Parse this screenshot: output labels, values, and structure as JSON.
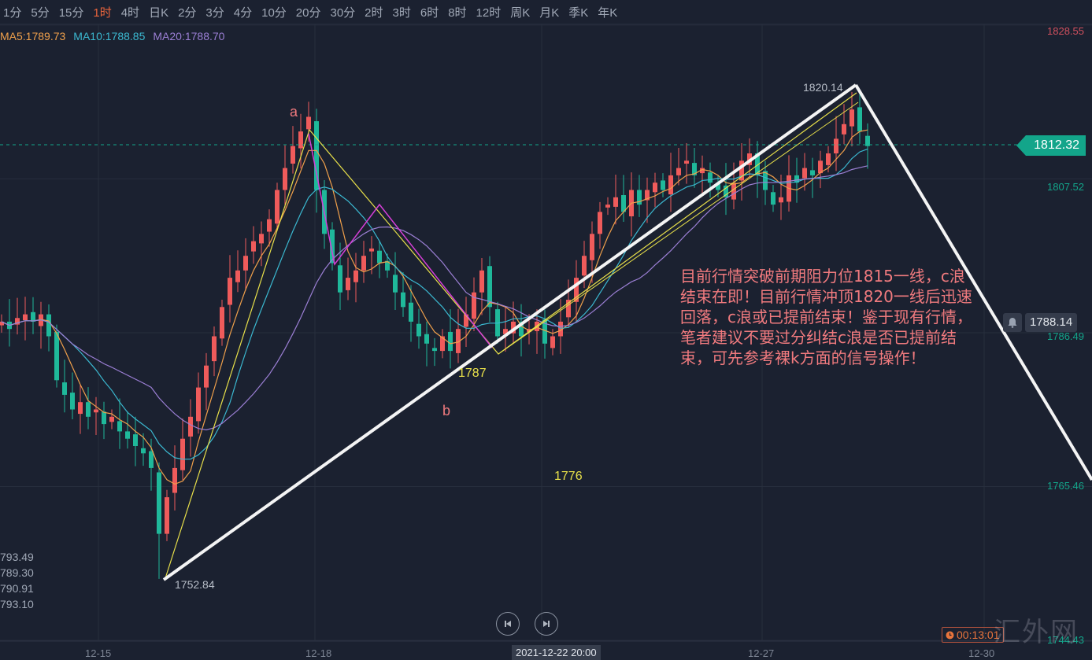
{
  "toolbar": {
    "intervals": [
      "1分",
      "5分",
      "15分",
      "1时",
      "4时",
      "日K",
      "2分",
      "3分",
      "4分",
      "10分",
      "20分",
      "30分",
      "2时",
      "3时",
      "6时",
      "8时",
      "12时",
      "周K",
      "月K",
      "季K",
      "年K"
    ],
    "active": "1时"
  },
  "legend": {
    "ma5": "MA5:1789.73",
    "ma10": "MA10:1788.85",
    "ma20": "MA20:1788.70"
  },
  "colors": {
    "background": "#1b2130",
    "up": "#ef5b5b",
    "down": "#1fb89a",
    "ma5": "#f0a04b",
    "ma10": "#3bb8d0",
    "ma20": "#9b7fd4",
    "annotation_text": "#f07a7e",
    "wave_yellow": "#e8e04a",
    "wave_magenta": "#d43fd6"
  },
  "side_values": [
    "793.49",
    "789.30",
    "790.91",
    "793.10"
  ],
  "current_price": "1812.32",
  "alert": {
    "icon": "bell-icon",
    "price": "1788.14"
  },
  "timer": "00:13:01",
  "watermark": "汇外网",
  "crosshair_time": "2021-12-22 20:00",
  "annotations": {
    "high_label": "1820.14",
    "low_label": "1752.84",
    "wave_a": "a",
    "wave_b": "b",
    "level_1787": "1787",
    "level_1776": "1776",
    "note": "目前行情突破前期阻力位1815一线，c浪结束在即！目前行情冲顶1820一线后迅速回落，c浪或已提前结束！鉴于现有行情，笔者建议不要过分纠结c浪是否已提前结束，可先参考裸k方面的信号操作！"
  },
  "chart_data": {
    "type": "candlestick",
    "interval": "1时",
    "y_ticks": [
      "1828.55",
      "1807.52",
      "1786.49",
      "1765.46",
      "1744.43"
    ],
    "ylim": [
      1744.43,
      1828.55
    ],
    "x_ticks": [
      "12-15",
      "12-18",
      "12-27",
      "12-30"
    ],
    "grid": true,
    "closes": [
      1788,
      1787,
      1788.5,
      1789,
      1788,
      1789,
      1786,
      1780,
      1778,
      1776,
      1777,
      1775,
      1776,
      1774,
      1775,
      1773,
      1772,
      1771,
      1770,
      1768,
      1759,
      1764,
      1768,
      1772,
      1775,
      1779,
      1782,
      1786,
      1790,
      1794,
      1795,
      1797,
      1799,
      1800,
      1802,
      1806,
      1809,
      1812,
      1814,
      1816,
      1806,
      1800,
      1796,
      1792,
      1794,
      1795,
      1797,
      1798,
      1796,
      1795,
      1792,
      1790,
      1788,
      1786,
      1785,
      1784,
      1786,
      1784,
      1787,
      1789,
      1792,
      1795,
      1790,
      1786,
      1787,
      1788,
      1786,
      1787,
      1788,
      1785,
      1786,
      1788,
      1791,
      1794,
      1797,
      1800,
      1803,
      1804,
      1805,
      1803,
      1806,
      1804,
      1806,
      1807,
      1806,
      1808,
      1809,
      1810,
      1808,
      1809,
      1807,
      1806,
      1805,
      1807,
      1810,
      1811,
      1808,
      1806,
      1804,
      1805,
      1808,
      1807,
      1809,
      1808,
      1810,
      1811,
      1813,
      1815,
      1817,
      1814,
      1812
    ],
    "high": 1820.14,
    "low": 1752.84,
    "moving_averages": [
      {
        "name": "MA5",
        "last": 1789.73
      },
      {
        "name": "MA10",
        "last": 1788.85
      },
      {
        "name": "MA20",
        "last": 1788.7
      }
    ]
  }
}
